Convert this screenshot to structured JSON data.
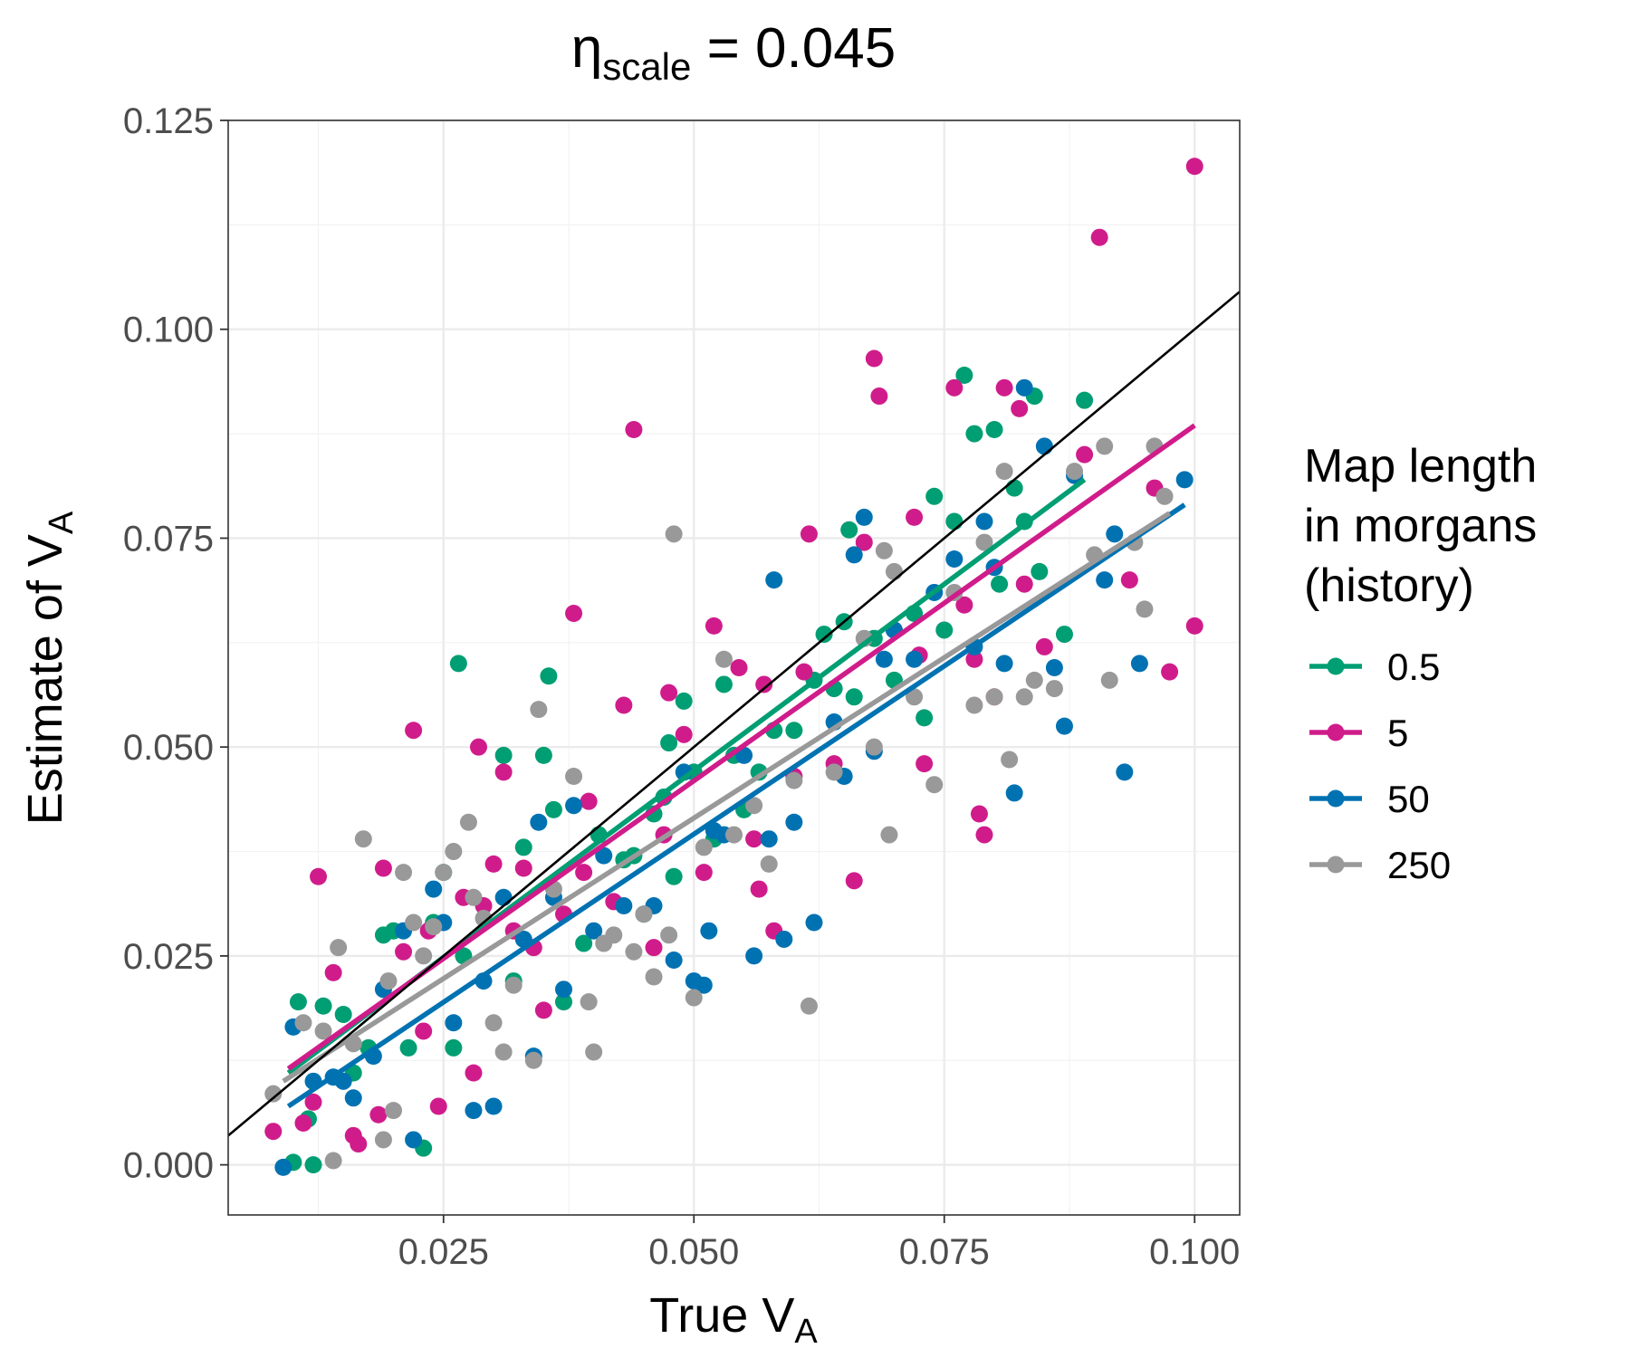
{
  "chart_data": {
    "type": "scatter",
    "title": {
      "main": "η",
      "sub": "scale",
      "rest": " = 0.045"
    },
    "xlabel": {
      "main": "True V",
      "sub": "A"
    },
    "ylabel": {
      "main": "Estimate of V",
      "sub": "A"
    },
    "xlim": [
      0.0035,
      0.1045
    ],
    "ylim": [
      -0.006,
      0.125
    ],
    "x_ticks": [
      "0.025",
      "0.050",
      "0.075",
      "0.100"
    ],
    "y_ticks": [
      "0.000",
      "0.025",
      "0.050",
      "0.075",
      "0.100",
      "0.125"
    ],
    "grid": true,
    "legend": {
      "position": "right",
      "title": [
        "Map length",
        "in morgans",
        "(history)"
      ],
      "entries": [
        "0.5",
        "5",
        "50",
        "250"
      ]
    },
    "identity_line": {
      "color": "#000000",
      "slope": 1,
      "intercept": 0
    },
    "series": [
      {
        "name": "0.5",
        "color": "#009E73",
        "fit": {
          "x": [
            0.0095,
            0.089
          ],
          "y": [
            0.011,
            0.082
          ]
        },
        "points": [
          [
            0.0105,
            0.0195
          ],
          [
            0.0115,
            0.0055
          ],
          [
            0.01,
            0.0003
          ],
          [
            0.012,
            0.0
          ],
          [
            0.013,
            0.019
          ],
          [
            0.015,
            0.018
          ],
          [
            0.016,
            0.011
          ],
          [
            0.0175,
            0.014
          ],
          [
            0.019,
            0.0275
          ],
          [
            0.02,
            0.028
          ],
          [
            0.0215,
            0.014
          ],
          [
            0.023,
            0.002
          ],
          [
            0.024,
            0.029
          ],
          [
            0.025,
            0.035
          ],
          [
            0.026,
            0.014
          ],
          [
            0.0265,
            0.06
          ],
          [
            0.027,
            0.025
          ],
          [
            0.031,
            0.049
          ],
          [
            0.032,
            0.022
          ],
          [
            0.033,
            0.038
          ],
          [
            0.035,
            0.049
          ],
          [
            0.0355,
            0.0585
          ],
          [
            0.036,
            0.0425
          ],
          [
            0.037,
            0.0195
          ],
          [
            0.039,
            0.0265
          ],
          [
            0.0405,
            0.0395
          ],
          [
            0.043,
            0.0365
          ],
          [
            0.044,
            0.037
          ],
          [
            0.045,
            0.03
          ],
          [
            0.046,
            0.042
          ],
          [
            0.047,
            0.044
          ],
          [
            0.0475,
            0.0505
          ],
          [
            0.048,
            0.0345
          ],
          [
            0.049,
            0.0555
          ],
          [
            0.05,
            0.047
          ],
          [
            0.052,
            0.039
          ],
          [
            0.053,
            0.0575
          ],
          [
            0.054,
            0.049
          ],
          [
            0.055,
            0.0425
          ],
          [
            0.0565,
            0.047
          ],
          [
            0.058,
            0.052
          ],
          [
            0.06,
            0.052
          ],
          [
            0.062,
            0.058
          ],
          [
            0.063,
            0.0635
          ],
          [
            0.064,
            0.057
          ],
          [
            0.065,
            0.065
          ],
          [
            0.0655,
            0.076
          ],
          [
            0.066,
            0.056
          ],
          [
            0.068,
            0.063
          ],
          [
            0.07,
            0.058
          ],
          [
            0.072,
            0.066
          ],
          [
            0.073,
            0.0535
          ],
          [
            0.074,
            0.08
          ],
          [
            0.075,
            0.064
          ],
          [
            0.076,
            0.077
          ],
          [
            0.077,
            0.0945
          ],
          [
            0.078,
            0.0875
          ],
          [
            0.08,
            0.088
          ],
          [
            0.0805,
            0.0695
          ],
          [
            0.082,
            0.081
          ],
          [
            0.083,
            0.077
          ],
          [
            0.084,
            0.092
          ],
          [
            0.0845,
            0.071
          ],
          [
            0.087,
            0.0635
          ],
          [
            0.089,
            0.0915
          ]
        ]
      },
      {
        "name": "5",
        "color": "#D01C8B",
        "fit": {
          "x": [
            0.0095,
            0.1
          ],
          "y": [
            0.0115,
            0.0885
          ]
        },
        "points": [
          [
            0.008,
            0.004
          ],
          [
            0.011,
            0.005
          ],
          [
            0.012,
            0.0075
          ],
          [
            0.0125,
            0.0345
          ],
          [
            0.014,
            0.023
          ],
          [
            0.016,
            0.0035
          ],
          [
            0.0165,
            0.0025
          ],
          [
            0.0185,
            0.006
          ],
          [
            0.019,
            0.0355
          ],
          [
            0.021,
            0.0255
          ],
          [
            0.022,
            0.052
          ],
          [
            0.023,
            0.016
          ],
          [
            0.0235,
            0.028
          ],
          [
            0.0245,
            0.007
          ],
          [
            0.027,
            0.032
          ],
          [
            0.028,
            0.011
          ],
          [
            0.0285,
            0.05
          ],
          [
            0.029,
            0.031
          ],
          [
            0.03,
            0.036
          ],
          [
            0.031,
            0.047
          ],
          [
            0.032,
            0.028
          ],
          [
            0.033,
            0.0355
          ],
          [
            0.034,
            0.026
          ],
          [
            0.035,
            0.0185
          ],
          [
            0.037,
            0.03
          ],
          [
            0.038,
            0.066
          ],
          [
            0.039,
            0.035
          ],
          [
            0.0395,
            0.0435
          ],
          [
            0.042,
            0.0315
          ],
          [
            0.043,
            0.055
          ],
          [
            0.044,
            0.088
          ],
          [
            0.046,
            0.026
          ],
          [
            0.047,
            0.0395
          ],
          [
            0.0475,
            0.0565
          ],
          [
            0.049,
            0.0515
          ],
          [
            0.051,
            0.035
          ],
          [
            0.052,
            0.0645
          ],
          [
            0.0545,
            0.0595
          ],
          [
            0.056,
            0.039
          ],
          [
            0.0565,
            0.033
          ],
          [
            0.057,
            0.0575
          ],
          [
            0.058,
            0.028
          ],
          [
            0.06,
            0.0465
          ],
          [
            0.061,
            0.059
          ],
          [
            0.0615,
            0.0755
          ],
          [
            0.064,
            0.048
          ],
          [
            0.066,
            0.034
          ],
          [
            0.067,
            0.0745
          ],
          [
            0.068,
            0.0965
          ],
          [
            0.0685,
            0.092
          ],
          [
            0.07,
            0.064
          ],
          [
            0.072,
            0.0775
          ],
          [
            0.0725,
            0.061
          ],
          [
            0.073,
            0.048
          ],
          [
            0.076,
            0.093
          ],
          [
            0.077,
            0.067
          ],
          [
            0.078,
            0.0605
          ],
          [
            0.0785,
            0.042
          ],
          [
            0.079,
            0.0395
          ],
          [
            0.08,
            0.056
          ],
          [
            0.081,
            0.093
          ],
          [
            0.0825,
            0.0905
          ],
          [
            0.083,
            0.0695
          ],
          [
            0.085,
            0.062
          ],
          [
            0.089,
            0.085
          ],
          [
            0.0905,
            0.111
          ],
          [
            0.0935,
            0.07
          ],
          [
            0.096,
            0.081
          ],
          [
            0.0975,
            0.059
          ],
          [
            0.1,
            0.1195
          ],
          [
            0.1,
            0.0645
          ]
        ]
      },
      {
        "name": "50",
        "color": "#0072B2",
        "fit": {
          "x": [
            0.0095,
            0.099
          ],
          "y": [
            0.007,
            0.079
          ]
        },
        "points": [
          [
            0.009,
            -0.0003
          ],
          [
            0.01,
            0.0165
          ],
          [
            0.012,
            0.01
          ],
          [
            0.014,
            0.0105
          ],
          [
            0.015,
            0.01
          ],
          [
            0.016,
            0.008
          ],
          [
            0.018,
            0.013
          ],
          [
            0.019,
            0.021
          ],
          [
            0.021,
            0.028
          ],
          [
            0.022,
            0.003
          ],
          [
            0.024,
            0.033
          ],
          [
            0.025,
            0.029
          ],
          [
            0.026,
            0.017
          ],
          [
            0.028,
            0.0065
          ],
          [
            0.029,
            0.022
          ],
          [
            0.03,
            0.007
          ],
          [
            0.031,
            0.032
          ],
          [
            0.033,
            0.027
          ],
          [
            0.034,
            0.013
          ],
          [
            0.0345,
            0.041
          ],
          [
            0.036,
            0.032
          ],
          [
            0.037,
            0.021
          ],
          [
            0.038,
            0.043
          ],
          [
            0.04,
            0.028
          ],
          [
            0.041,
            0.037
          ],
          [
            0.043,
            0.031
          ],
          [
            0.046,
            0.031
          ],
          [
            0.048,
            0.0245
          ],
          [
            0.049,
            0.047
          ],
          [
            0.05,
            0.022
          ],
          [
            0.051,
            0.0215
          ],
          [
            0.0515,
            0.028
          ],
          [
            0.052,
            0.04
          ],
          [
            0.053,
            0.0395
          ],
          [
            0.055,
            0.049
          ],
          [
            0.056,
            0.025
          ],
          [
            0.0575,
            0.039
          ],
          [
            0.058,
            0.07
          ],
          [
            0.059,
            0.027
          ],
          [
            0.06,
            0.041
          ],
          [
            0.062,
            0.029
          ],
          [
            0.064,
            0.053
          ],
          [
            0.065,
            0.0465
          ],
          [
            0.066,
            0.073
          ],
          [
            0.067,
            0.0775
          ],
          [
            0.068,
            0.0495
          ],
          [
            0.069,
            0.0605
          ],
          [
            0.07,
            0.064
          ],
          [
            0.072,
            0.0605
          ],
          [
            0.074,
            0.0685
          ],
          [
            0.076,
            0.0725
          ],
          [
            0.078,
            0.062
          ],
          [
            0.079,
            0.077
          ],
          [
            0.08,
            0.0715
          ],
          [
            0.081,
            0.06
          ],
          [
            0.082,
            0.0445
          ],
          [
            0.083,
            0.093
          ],
          [
            0.085,
            0.086
          ],
          [
            0.086,
            0.0595
          ],
          [
            0.087,
            0.0525
          ],
          [
            0.088,
            0.0825
          ],
          [
            0.091,
            0.07
          ],
          [
            0.092,
            0.0755
          ],
          [
            0.093,
            0.047
          ],
          [
            0.0945,
            0.06
          ],
          [
            0.099,
            0.082
          ]
        ]
      },
      {
        "name": "250",
        "color": "#999999",
        "fit": {
          "x": [
            0.009,
            0.0975
          ],
          "y": [
            0.01,
            0.078
          ]
        },
        "points": [
          [
            0.008,
            0.0085
          ],
          [
            0.011,
            0.017
          ],
          [
            0.013,
            0.016
          ],
          [
            0.014,
            0.0005
          ],
          [
            0.0145,
            0.026
          ],
          [
            0.016,
            0.0145
          ],
          [
            0.017,
            0.039
          ],
          [
            0.019,
            0.003
          ],
          [
            0.0195,
            0.022
          ],
          [
            0.02,
            0.0065
          ],
          [
            0.021,
            0.035
          ],
          [
            0.022,
            0.029
          ],
          [
            0.023,
            0.025
          ],
          [
            0.024,
            0.0285
          ],
          [
            0.025,
            0.035
          ],
          [
            0.026,
            0.0375
          ],
          [
            0.0275,
            0.041
          ],
          [
            0.028,
            0.032
          ],
          [
            0.029,
            0.0295
          ],
          [
            0.03,
            0.017
          ],
          [
            0.031,
            0.0135
          ],
          [
            0.032,
            0.0215
          ],
          [
            0.034,
            0.0125
          ],
          [
            0.0345,
            0.0545
          ],
          [
            0.036,
            0.033
          ],
          [
            0.038,
            0.0465
          ],
          [
            0.0395,
            0.0195
          ],
          [
            0.04,
            0.0135
          ],
          [
            0.041,
            0.0265
          ],
          [
            0.042,
            0.0275
          ],
          [
            0.044,
            0.0255
          ],
          [
            0.045,
            0.03
          ],
          [
            0.046,
            0.0225
          ],
          [
            0.0475,
            0.0275
          ],
          [
            0.048,
            0.0755
          ],
          [
            0.05,
            0.02
          ],
          [
            0.051,
            0.038
          ],
          [
            0.053,
            0.0605
          ],
          [
            0.054,
            0.0395
          ],
          [
            0.056,
            0.043
          ],
          [
            0.0575,
            0.036
          ],
          [
            0.06,
            0.046
          ],
          [
            0.0615,
            0.019
          ],
          [
            0.064,
            0.047
          ],
          [
            0.067,
            0.063
          ],
          [
            0.068,
            0.05
          ],
          [
            0.069,
            0.0735
          ],
          [
            0.0695,
            0.0395
          ],
          [
            0.07,
            0.071
          ],
          [
            0.072,
            0.056
          ],
          [
            0.074,
            0.0455
          ],
          [
            0.076,
            0.0685
          ],
          [
            0.078,
            0.055
          ],
          [
            0.079,
            0.0745
          ],
          [
            0.08,
            0.056
          ],
          [
            0.081,
            0.083
          ],
          [
            0.0815,
            0.0485
          ],
          [
            0.083,
            0.056
          ],
          [
            0.084,
            0.058
          ],
          [
            0.086,
            0.057
          ],
          [
            0.088,
            0.083
          ],
          [
            0.09,
            0.073
          ],
          [
            0.091,
            0.086
          ],
          [
            0.0915,
            0.058
          ],
          [
            0.094,
            0.0745
          ],
          [
            0.095,
            0.0665
          ],
          [
            0.096,
            0.086
          ],
          [
            0.097,
            0.08
          ]
        ]
      }
    ]
  }
}
